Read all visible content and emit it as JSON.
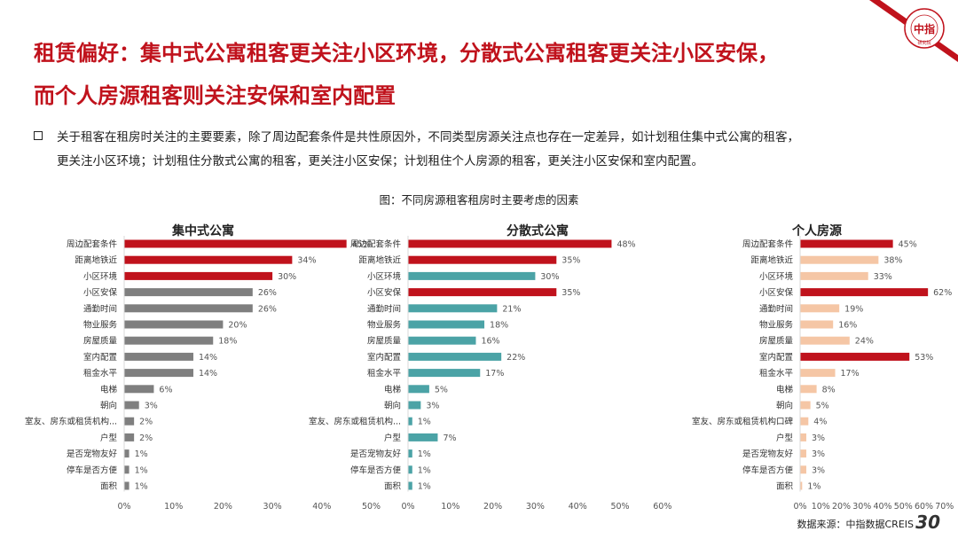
{
  "page": {
    "title_line1": "租赁偏好：集中式公寓租客更关注小区环境，分散式公寓租客更关注小区安保，",
    "title_line2": "而个人房源租客则关注安保和室内配置",
    "bullet_line1": "关于租客在租房时关注的主要要素，除了周边配套条件是共性原因外，不同类型房源关注点也存在一定差异，如计划租住集中式公寓的租客，",
    "bullet_line2": "更关注小区环境；计划租住分散式公寓的租客，更关注小区安保；计划租住个人房源的租客，更关注小区安保和室内配置。",
    "chart_caption": "图：不同房源租客租房时主要考虑的因素",
    "source": "数据来源：中指数据CREIS",
    "page_number": "30",
    "logo_text": "中指",
    "logo_ring_text": "CHINA INDEX ACADEMY",
    "logo_sub_text": "研究院"
  },
  "colors": {
    "red": "#c0121c",
    "gray": "#7f7f7f",
    "teal": "#4ba3a6",
    "peach": "#f5c6a5",
    "title_red": "#c0121c"
  },
  "chart_data": [
    {
      "type": "bar",
      "orientation": "horizontal",
      "title": "集中式公寓",
      "categories": [
        "周边配套条件",
        "距离地铁近",
        "小区环境",
        "小区安保",
        "通勤时间",
        "物业服务",
        "房屋质量",
        "室内配置",
        "租金水平",
        "电梯",
        "朝向",
        "室友、房东或租赁机构...",
        "户型",
        "是否宠物友好",
        "停车是否方便",
        "面积"
      ],
      "values": [
        45,
        34,
        30,
        26,
        26,
        20,
        18,
        14,
        14,
        6,
        3,
        2,
        2,
        1,
        1,
        1
      ],
      "highlight": [
        true,
        true,
        true,
        false,
        false,
        false,
        false,
        false,
        false,
        false,
        false,
        false,
        false,
        false,
        false,
        false
      ],
      "base_color": "gray",
      "xlim": [
        0,
        50
      ],
      "xticks": [
        "0%",
        "10%",
        "20%",
        "30%",
        "40%",
        "50%"
      ],
      "value_suffix": "%"
    },
    {
      "type": "bar",
      "orientation": "horizontal",
      "title": "分散式公寓",
      "categories": [
        "周边配套条件",
        "距离地铁近",
        "小区环境",
        "小区安保",
        "通勤时间",
        "物业服务",
        "房屋质量",
        "室内配置",
        "租金水平",
        "电梯",
        "朝向",
        "室友、房东或租赁机构...",
        "户型",
        "是否宠物友好",
        "停车是否方便",
        "面积"
      ],
      "values": [
        48,
        35,
        30,
        35,
        21,
        18,
        16,
        22,
        17,
        5,
        3,
        1,
        7,
        1,
        1,
        1
      ],
      "highlight": [
        true,
        true,
        false,
        true,
        false,
        false,
        false,
        false,
        false,
        false,
        false,
        false,
        false,
        false,
        false,
        false
      ],
      "base_color": "teal",
      "xlim": [
        0,
        60
      ],
      "xticks": [
        "0%",
        "10%",
        "20%",
        "30%",
        "40%",
        "50%",
        "60%"
      ],
      "value_suffix": "%"
    },
    {
      "type": "bar",
      "orientation": "horizontal",
      "title": "个人房源",
      "categories": [
        "周边配套条件",
        "距离地铁近",
        "小区环境",
        "小区安保",
        "通勤时间",
        "物业服务",
        "房屋质量",
        "室内配置",
        "租金水平",
        "电梯",
        "朝向",
        "室友、房东或租赁机构口碑",
        "户型",
        "是否宠物友好",
        "停车是否方便",
        "面积"
      ],
      "values": [
        45,
        38,
        33,
        62,
        19,
        16,
        24,
        53,
        17,
        8,
        5,
        4,
        3,
        3,
        3,
        1
      ],
      "highlight": [
        true,
        false,
        false,
        true,
        false,
        false,
        false,
        true,
        false,
        false,
        false,
        false,
        false,
        false,
        false,
        false
      ],
      "base_color": "peach",
      "xlim": [
        0,
        70
      ],
      "xticks": [
        "0%",
        "10%",
        "20%",
        "30%",
        "40%",
        "50%",
        "60%",
        "70%"
      ],
      "value_suffix": "%"
    }
  ]
}
